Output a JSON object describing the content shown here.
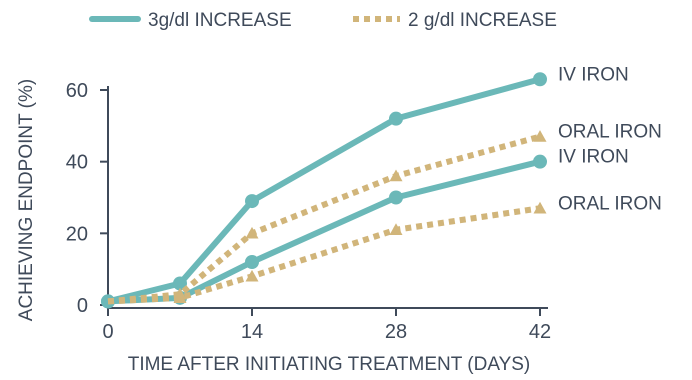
{
  "chart_data": {
    "type": "line",
    "x": [
      0,
      7,
      14,
      28,
      42
    ],
    "xticks": [
      "0",
      "14",
      "28",
      "42"
    ],
    "xtick_values": [
      0,
      14,
      28,
      42
    ],
    "yticks": [
      "0",
      "20",
      "40",
      "60"
    ],
    "ytick_values": [
      0,
      20,
      40,
      60
    ],
    "xlim": [
      0,
      42
    ],
    "ylim": [
      0,
      60
    ],
    "xlabel": "TIME AFTER INITIATING TREATMENT (DAYS)",
    "ylabel": "ACHIEVING ENDPOINT (%)",
    "grid": false,
    "legend": {
      "position": "top",
      "entries": [
        {
          "label": "3g/dl INCREASE",
          "style": "solid",
          "color": "#6bb8b8"
        },
        {
          "label": "2 g/dl INCREASE",
          "style": "dotted",
          "color": "#d1b57a"
        }
      ]
    },
    "series": [
      {
        "name": "IV IRON",
        "group": "3g/dl INCREASE",
        "style": "solid",
        "marker": "circle",
        "color": "#6bb8b8",
        "values": [
          1,
          6,
          29,
          52,
          63
        ]
      },
      {
        "name": "IV IRON",
        "group": "2 g/dl INCREASE",
        "style": "solid",
        "marker": "circle",
        "color": "#6bb8b8",
        "values": [
          1,
          2,
          12,
          30,
          40
        ]
      },
      {
        "name": "ORAL IRON",
        "group": "3g/dl INCREASE",
        "style": "dotted",
        "marker": "triangle",
        "color": "#d1b57a",
        "values": [
          1,
          3,
          20,
          36,
          47
        ]
      },
      {
        "name": "ORAL IRON",
        "group": "2 g/dl INCREASE",
        "style": "dotted",
        "marker": "triangle",
        "color": "#d1b57a",
        "values": [
          1,
          2,
          8,
          21,
          27
        ]
      }
    ]
  }
}
